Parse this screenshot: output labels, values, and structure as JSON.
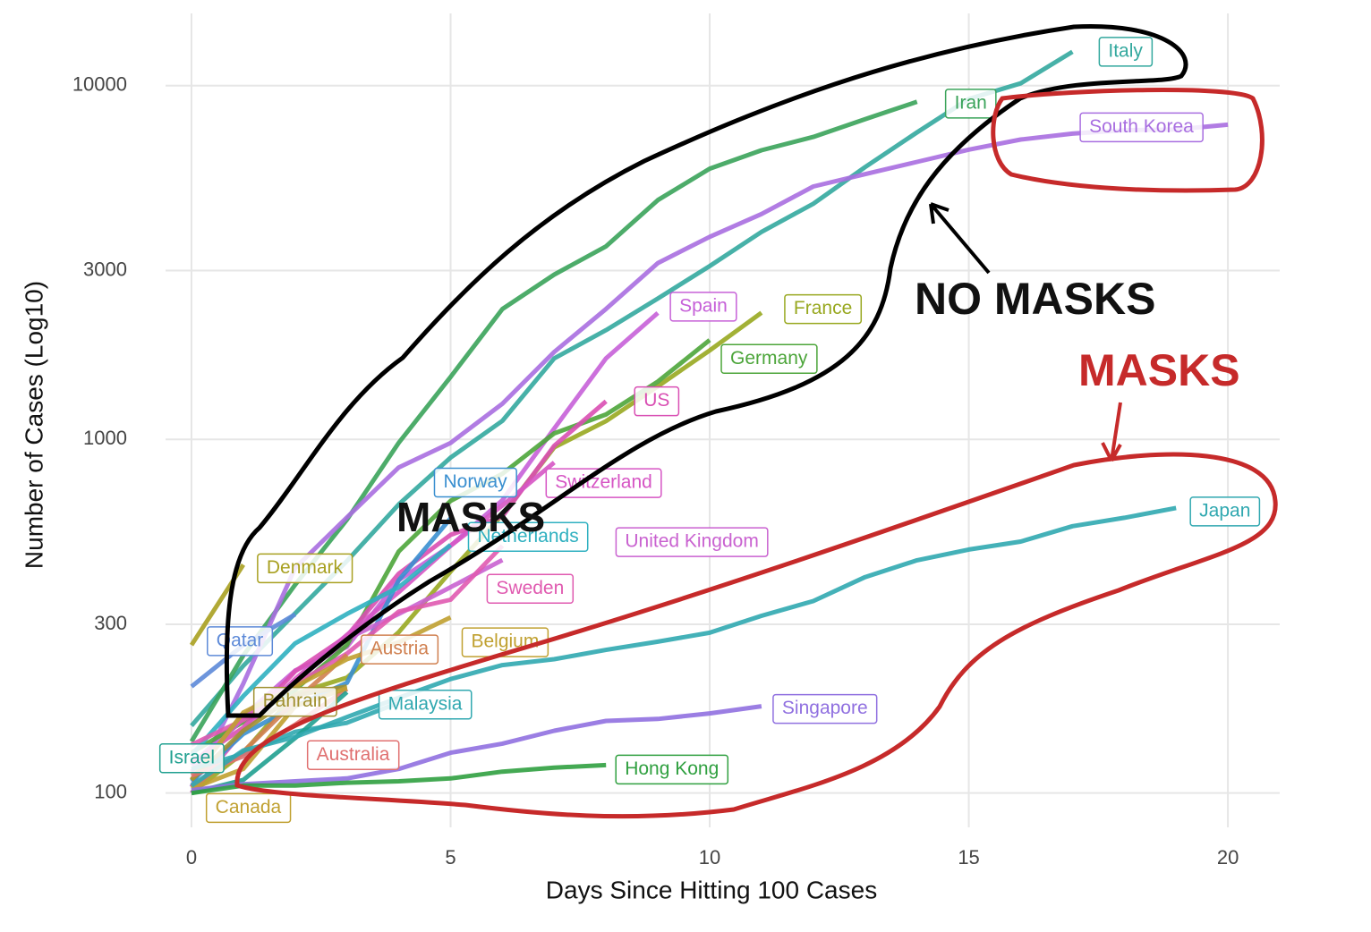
{
  "chart_data": {
    "type": "line",
    "x_label": "Days Since Hitting 100 Cases",
    "y_label": "Number of Cases (Log10)",
    "xlim": [
      -0.5,
      21
    ],
    "xticks": [
      0,
      5,
      10,
      15,
      20
    ],
    "ylim": [
      80,
      16000
    ],
    "yticks": [
      100,
      300,
      1000,
      3000,
      10000
    ],
    "log_y": true,
    "grid": true,
    "annotations": [
      "NO MASKS",
      "MASKS",
      "MASKS"
    ],
    "series": [
      {
        "name": "Italy",
        "color": "#33a89e",
        "values": [
          155,
          229,
          322,
          453,
          655,
          888,
          1128,
          1694,
          2036,
          2502,
          3089,
          3858,
          4636,
          5883,
          7375,
          9172,
          10149,
          12462
        ]
      },
      {
        "name": "Iran",
        "color": "#3aa35a",
        "values": [
          140,
          245,
          388,
          593,
          978,
          1501,
          2336,
          2922,
          3513,
          4747,
          5823,
          6566,
          7161,
          8042,
          9000
        ]
      },
      {
        "name": "South Korea",
        "color": "#a86ee0",
        "values": [
          104,
          204,
          433,
          602,
          833,
          977,
          1261,
          1766,
          2337,
          3150,
          3736,
          4335,
          5186,
          5621,
          6088,
          6593,
          7041,
          7314,
          7478,
          7513,
          7755
        ]
      },
      {
        "name": "Spain",
        "color": "#c660d8",
        "values": [
          120,
          165,
          222,
          259,
          400,
          500,
          673,
          1073,
          1695,
          2277
        ]
      },
      {
        "name": "France",
        "color": "#98a820",
        "values": [
          100,
          130,
          191,
          212,
          285,
          423,
          613,
          949,
          1126,
          1412,
          1784,
          2281
        ]
      },
      {
        "name": "Germany",
        "color": "#4ca53a",
        "values": [
          130,
          159,
          196,
          262,
          482,
          670,
          799,
          1040,
          1176,
          1457,
          1908
        ]
      },
      {
        "name": "US",
        "color": "#d94fb3",
        "values": [
          122,
          153,
          221,
          278,
          417,
          537,
          605,
          959,
          1281
        ]
      },
      {
        "name": "Switzerland",
        "color": "#d655c4",
        "values": [
          100,
          150,
          210,
          280,
          370,
          500,
          650,
          860
        ]
      },
      {
        "name": "Norway",
        "color": "#3a8fd0",
        "values": [
          108,
          147,
          176,
          205,
          400,
          598
        ]
      },
      {
        "name": "Netherlands",
        "color": "#2fb0c0",
        "values": [
          128,
          188,
          265,
          321,
          382,
          503
        ]
      },
      {
        "name": "United Kingdom",
        "color": "#c962d0",
        "values": [
          115,
          163,
          206,
          273,
          321,
          382,
          456
        ]
      },
      {
        "name": "Sweden",
        "color": "#e05ab0",
        "values": [
          137,
          161,
          203,
          248,
          326,
          352,
          500
        ]
      },
      {
        "name": "Denmark",
        "color": "#a8a020",
        "values": [
          262,
          442
        ]
      },
      {
        "name": "Qatar",
        "color": "#5d8ad8",
        "values": [
          200,
          262,
          320
        ]
      },
      {
        "name": "Austria",
        "color": "#d08050",
        "values": [
          104,
          131,
          182,
          246
        ]
      },
      {
        "name": "Belgium",
        "color": "#c0a030",
        "values": [
          109,
          169,
          200,
          239,
          267,
          314
        ]
      },
      {
        "name": "Bahrain",
        "color": "#a09030",
        "values": [
          109,
          150,
          189,
          200
        ]
      },
      {
        "name": "Malaysia",
        "color": "#30a8b0",
        "values": [
          117,
          129,
          149,
          158,
          180
        ]
      },
      {
        "name": "Australia",
        "color": "#e07070",
        "values": [
          112,
          127,
          156,
          197
        ]
      },
      {
        "name": "Israel",
        "color": "#20a090",
        "values": [
          100,
          109,
          143,
          193
        ]
      },
      {
        "name": "Canada",
        "color": "#c0a030",
        "values": [
          103,
          117,
          176,
          198
        ]
      },
      {
        "name": "Japan",
        "color": "#30a8b0",
        "values": [
          105,
          132,
          144,
          164,
          186,
          210,
          230,
          239,
          254,
          268,
          284,
          317,
          349,
          408,
          455,
          488,
          514,
          568,
          600,
          640
        ]
      },
      {
        "name": "Singapore",
        "color": "#9070e0",
        "values": [
          102,
          106,
          108,
          110,
          117,
          130,
          138,
          150,
          160,
          162,
          168,
          176
        ]
      },
      {
        "name": "Hong Kong",
        "color": "#30a040",
        "values": [
          100,
          105,
          105,
          107,
          108,
          110,
          115,
          118,
          120
        ]
      }
    ]
  }
}
